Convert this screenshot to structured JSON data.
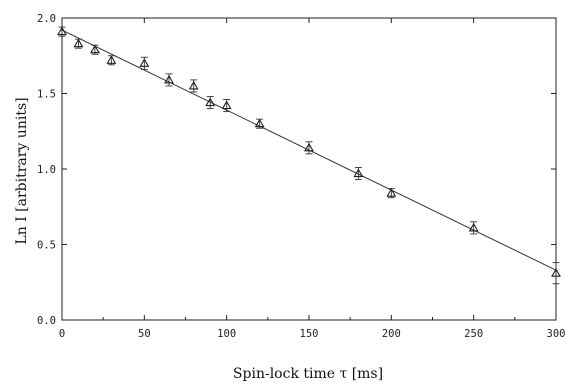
{
  "chart_data": {
    "type": "scatter",
    "title": "",
    "xlabel": "Spin-lock time τ [ms]",
    "ylabel": "Ln I [arbitrary units]",
    "xlim": [
      0,
      300
    ],
    "ylim": [
      0.0,
      2.0
    ],
    "xticks": [
      0,
      50,
      100,
      150,
      200,
      250,
      300
    ],
    "yticks": [
      0.0,
      0.5,
      1.0,
      1.5,
      2.0
    ],
    "xtick_labels": [
      "0",
      "50",
      "100",
      "150",
      "200",
      "250",
      "300"
    ],
    "ytick_labels": [
      "0.0",
      "0.5",
      "1.0",
      "1.5",
      "2.0"
    ],
    "grid": false,
    "marker": "open-triangle",
    "series": [
      {
        "x": [
          0,
          10,
          20,
          30,
          50,
          65,
          80,
          90,
          100,
          120,
          150,
          180,
          200,
          250,
          300
        ],
        "y": [
          1.91,
          1.83,
          1.79,
          1.72,
          1.7,
          1.59,
          1.55,
          1.44,
          1.42,
          1.3,
          1.14,
          0.97,
          0.84,
          0.61,
          0.31
        ],
        "err": [
          0.03,
          0.03,
          0.03,
          0.03,
          0.04,
          0.04,
          0.04,
          0.04,
          0.04,
          0.03,
          0.04,
          0.04,
          0.03,
          0.04,
          0.07
        ]
      }
    ],
    "fit_line": {
      "x": [
        0,
        300
      ],
      "y": [
        1.92,
        0.33
      ]
    }
  }
}
